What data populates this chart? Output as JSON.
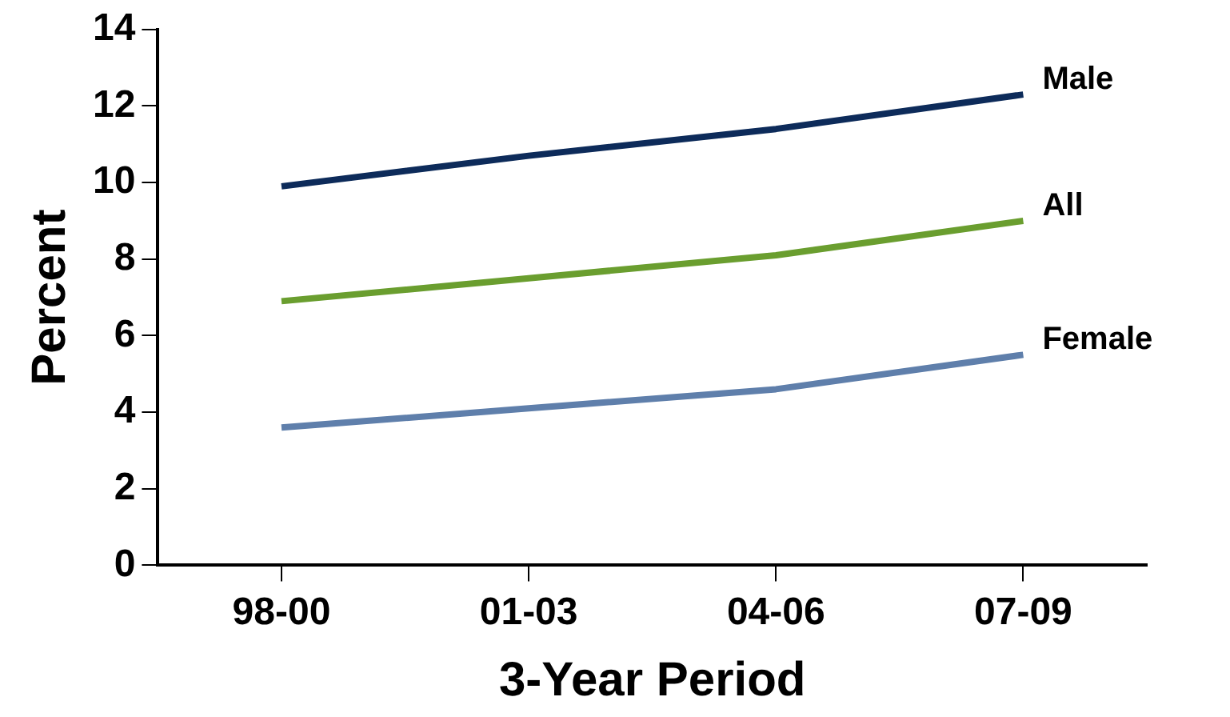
{
  "chart_data": {
    "type": "line",
    "xlabel": "3-Year Period",
    "ylabel": "Percent",
    "categories": [
      "98-00",
      "01-03",
      "04-06",
      "07-09"
    ],
    "series": [
      {
        "name": "Male",
        "color": "#0d2b5a",
        "values": [
          9.9,
          10.7,
          11.4,
          12.3
        ]
      },
      {
        "name": "All",
        "color": "#6a9e2f",
        "values": [
          6.9,
          7.5,
          8.1,
          9.0
        ]
      },
      {
        "name": "Female",
        "color": "#5f7fab",
        "values": [
          3.6,
          4.1,
          4.6,
          5.5
        ]
      }
    ],
    "ylim": [
      0,
      14
    ],
    "yticks": [
      0,
      2,
      4,
      6,
      8,
      10,
      12,
      14
    ],
    "grid": false,
    "legend": false,
    "marker": "none",
    "line_style": "solid"
  }
}
